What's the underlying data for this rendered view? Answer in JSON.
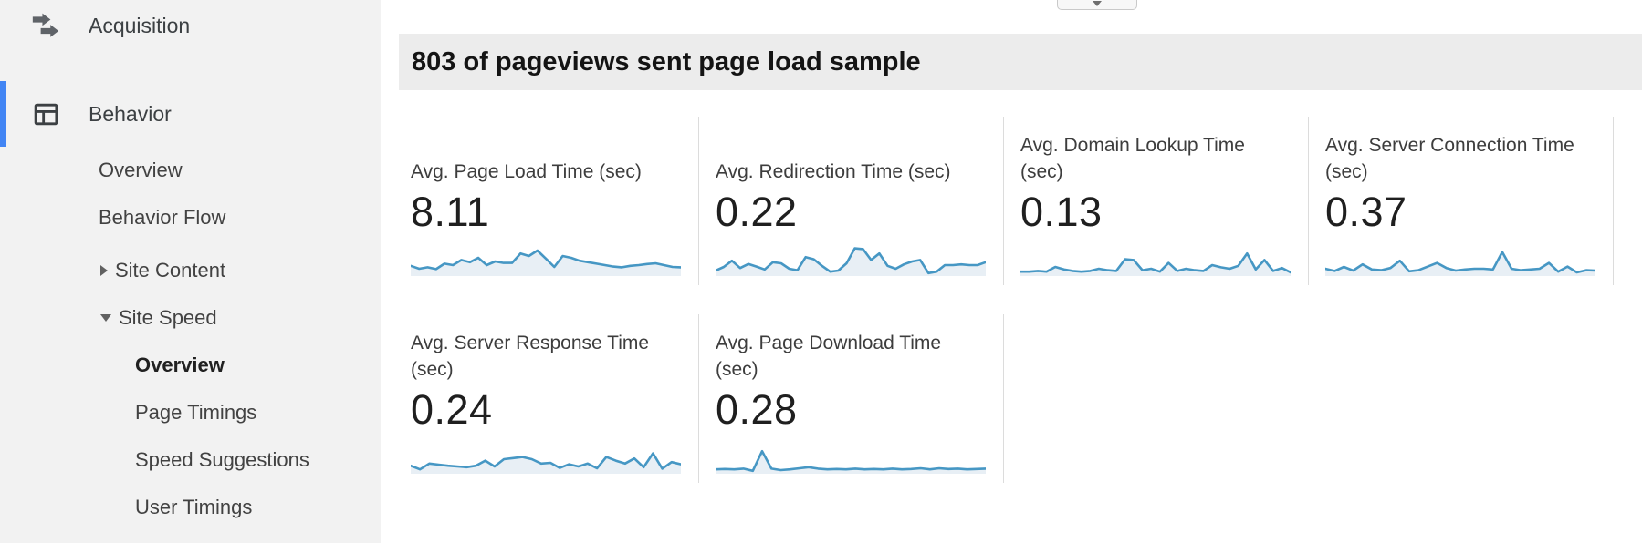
{
  "theme": {
    "accent_blue": "#4285f4",
    "spark_line": "#4697c4",
    "spark_fill": "#e8eff5",
    "sidebar_bg": "#f2f2f2",
    "banner_bg": "#ececec"
  },
  "sidebar": {
    "items": [
      {
        "label": "Acquisition",
        "icon": "acquisition-icon",
        "level": 0
      },
      {
        "label": "Behavior",
        "icon": "behavior-icon",
        "level": 0,
        "active": true
      },
      {
        "label": "Overview",
        "level": 1
      },
      {
        "label": "Behavior Flow",
        "level": 1
      },
      {
        "label": "Site Content",
        "level": 1,
        "expander": "collapsed"
      },
      {
        "label": "Site Speed",
        "level": 1,
        "expander": "expanded"
      },
      {
        "label": "Overview",
        "level": 2,
        "selected": true
      },
      {
        "label": "Page Timings",
        "level": 2
      },
      {
        "label": "Speed Suggestions",
        "level": 2
      },
      {
        "label": "User Timings",
        "level": 2
      }
    ]
  },
  "banner": {
    "text": "803 of pageviews sent page load sample"
  },
  "metrics": [
    {
      "label": "Avg. Page Load Time (sec)",
      "value": "8.11"
    },
    {
      "label": "Avg. Redirection Time (sec)",
      "value": "0.22"
    },
    {
      "label": "Avg. Domain Lookup Time\n(sec)",
      "value": "0.13"
    },
    {
      "label": "Avg. Server Connection Time\n(sec)",
      "value": "0.37"
    },
    {
      "label": "Avg. Server Response Time\n(sec)",
      "value": "0.24"
    },
    {
      "label": "Avg. Page Download Time\n(sec)",
      "value": "0.28"
    }
  ],
  "chart_data": {
    "type": "line",
    "description": "Six sparkline trend charts (one per site-speed metric). Axes are unlabeled; values are relative heights 0-100 of the sparkline area.",
    "legend_position": "none",
    "grid": false,
    "series": [
      {
        "name": "Avg. Page Load Time (sec)",
        "displayed_average": 8.11,
        "relative_values": [
          28,
          20,
          24,
          19,
          34,
          30,
          44,
          38,
          50,
          30,
          40,
          36,
          36,
          62,
          55,
          70,
          48,
          25,
          55,
          50,
          42,
          38,
          34,
          30,
          26,
          24,
          28,
          30,
          33,
          35,
          30,
          25,
          24
        ]
      },
      {
        "name": "Avg. Redirection Time (sec)",
        "displayed_average": 0.22,
        "relative_values": [
          15,
          25,
          42,
          22,
          33,
          26,
          18,
          38,
          35,
          20,
          16,
          52,
          46,
          28,
          12,
          15,
          35,
          76,
          74,
          44,
          62,
          28,
          20,
          32,
          40,
          44,
          8,
          12,
          30,
          30,
          32,
          30,
          30,
          38
        ]
      },
      {
        "name": "Avg. Domain Lookup Time (sec)",
        "displayed_average": 0.13,
        "relative_values": [
          12,
          12,
          14,
          12,
          25,
          18,
          14,
          12,
          14,
          20,
          16,
          14,
          46,
          44,
          16,
          20,
          12,
          36,
          14,
          20,
          16,
          14,
          30,
          24,
          20,
          28,
          62,
          18,
          44,
          14,
          22,
          10
        ]
      },
      {
        "name": "Avg. Server Connection Time (sec)",
        "displayed_average": 0.37,
        "relative_values": [
          20,
          14,
          25,
          15,
          32,
          18,
          16,
          22,
          42,
          13,
          16,
          26,
          36,
          22,
          15,
          18,
          20,
          20,
          18,
          66,
          20,
          16,
          18,
          20,
          36,
          12,
          26,
          10,
          16,
          15
        ]
      },
      {
        "name": "Avg. Server Response Time (sec)",
        "displayed_average": 0.24,
        "relative_values": [
          22,
          12,
          28,
          25,
          22,
          20,
          18,
          22,
          36,
          20,
          40,
          43,
          46,
          40,
          28,
          30,
          16,
          26,
          20,
          28,
          15,
          46,
          36,
          28,
          42,
          18,
          56,
          14,
          32,
          26
        ]
      },
      {
        "name": "Avg. Page Download Time (sec)",
        "displayed_average": 0.28,
        "relative_values": [
          12,
          13,
          12,
          14,
          8,
          62,
          14,
          10,
          12,
          15,
          18,
          14,
          12,
          13,
          12,
          14,
          12,
          13,
          12,
          14,
          12,
          13,
          15,
          12,
          15,
          13,
          14,
          12,
          13,
          14
        ]
      }
    ]
  }
}
